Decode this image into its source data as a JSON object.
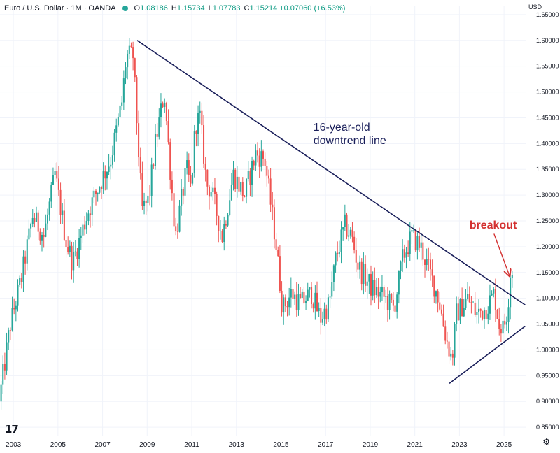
{
  "header": {
    "symbol": "Euro / U.S. Dollar · 1M · OANDA",
    "ohlc": [
      {
        "label": "O",
        "value": "1.08186"
      },
      {
        "label": "H",
        "value": "1.15734"
      },
      {
        "label": "L",
        "value": "1.07783"
      },
      {
        "label": "C",
        "value": "1.15214"
      },
      {
        "label": "",
        "value": "+0.07060 (+6.53%)"
      }
    ],
    "currency": "USD"
  },
  "colors": {
    "up": "#26a69a",
    "down": "#ef5350",
    "trendline": "#1a1f5a",
    "annotation_blue": "#1a1f5a",
    "annotation_red": "#d32f2f"
  },
  "chart_data": {
    "type": "candlestick",
    "title": "",
    "xlabel": "",
    "ylabel": "",
    "xlim": [
      2002.45,
      2026.05
    ],
    "ylim": [
      0.8325,
      1.6675
    ],
    "y_ticks": [
      "0.85000",
      "0.90000",
      "0.95000",
      "1.00000",
      "1.05000",
      "1.10000",
      "1.15000",
      "1.20000",
      "1.25000",
      "1.30000",
      "1.35000",
      "1.40000",
      "1.45000",
      "1.50000",
      "1.55000",
      "1.60000",
      "1.65000"
    ],
    "x_ticks": [
      "2003",
      "2005",
      "2007",
      "2009",
      "2011",
      "2013",
      "2015",
      "2017",
      "2019",
      "2021",
      "2023",
      "2025"
    ],
    "close_path": [
      [
        2002.5,
        0.9
      ],
      [
        2003.0,
        1.05
      ],
      [
        2003.5,
        1.14
      ],
      [
        2004.0,
        1.26
      ],
      [
        2004.5,
        1.22
      ],
      [
        2005.0,
        1.34
      ],
      [
        2005.5,
        1.21
      ],
      [
        2005.8,
        1.17
      ],
      [
        2006.5,
        1.27
      ],
      [
        2007.0,
        1.32
      ],
      [
        2007.5,
        1.37
      ],
      [
        2008.0,
        1.48
      ],
      [
        2008.2,
        1.57
      ],
      [
        2008.5,
        1.57
      ],
      [
        2008.9,
        1.27
      ],
      [
        2009.2,
        1.29
      ],
      [
        2009.5,
        1.4
      ],
      [
        2009.9,
        1.5
      ],
      [
        2010.4,
        1.22
      ],
      [
        2010.9,
        1.35
      ],
      [
        2011.1,
        1.31
      ],
      [
        2011.3,
        1.44
      ],
      [
        2011.5,
        1.45
      ],
      [
        2011.8,
        1.32
      ],
      [
        2012.0,
        1.31
      ],
      [
        2012.5,
        1.22
      ],
      [
        2013.0,
        1.34
      ],
      [
        2013.5,
        1.3
      ],
      [
        2014.0,
        1.38
      ],
      [
        2014.4,
        1.37
      ],
      [
        2014.9,
        1.21
      ],
      [
        2015.2,
        1.08
      ],
      [
        2015.6,
        1.11
      ],
      [
        2016.0,
        1.09
      ],
      [
        2016.5,
        1.11
      ],
      [
        2016.9,
        1.06
      ],
      [
        2017.3,
        1.09
      ],
      [
        2017.6,
        1.18
      ],
      [
        2018.0,
        1.24
      ],
      [
        2018.3,
        1.22
      ],
      [
        2018.6,
        1.16
      ],
      [
        2019.2,
        1.12
      ],
      [
        2019.8,
        1.1
      ],
      [
        2020.2,
        1.08
      ],
      [
        2020.6,
        1.18
      ],
      [
        2021.0,
        1.22
      ],
      [
        2021.4,
        1.2
      ],
      [
        2021.8,
        1.15
      ],
      [
        2022.2,
        1.1
      ],
      [
        2022.5,
        1.03
      ],
      [
        2022.8,
        0.98
      ],
      [
        2023.0,
        1.07
      ],
      [
        2023.5,
        1.1
      ],
      [
        2023.9,
        1.07
      ],
      [
        2024.3,
        1.08
      ],
      [
        2024.7,
        1.11
      ],
      [
        2024.9,
        1.05
      ],
      [
        2025.1,
        1.04
      ],
      [
        2025.3,
        1.08
      ],
      [
        2025.4,
        1.15
      ]
    ],
    "trendlines": [
      {
        "points": [
          [
            2008.6,
            1.6
          ],
          [
            2026.0,
            1.087
          ]
        ]
      },
      {
        "points": [
          [
            2022.6,
            0.935
          ],
          [
            2026.0,
            1.046
          ]
        ]
      }
    ],
    "annotations": [
      {
        "text_lines": [
          "16-year-old",
          "downtrend line"
        ],
        "x": 2016.5,
        "y": 1.425,
        "color": "annotation_blue"
      },
      {
        "text_lines": [
          "breakout"
        ],
        "x": 2023.5,
        "y": 1.235,
        "color": "annotation_red",
        "arrow_from": [
          2024.6,
          1.225
        ],
        "arrow_to": [
          2025.3,
          1.143
        ]
      }
    ]
  }
}
